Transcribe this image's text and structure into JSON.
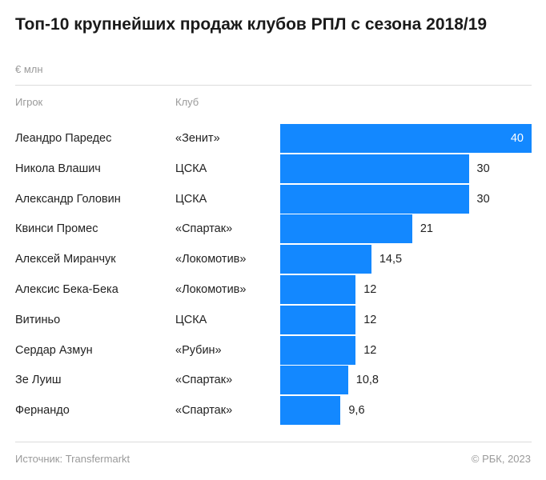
{
  "title": "Топ-10 крупнейших продаж клубов РПЛ с сезона 2018/19",
  "units": "€ млн",
  "columns": {
    "player": "Игрок",
    "club": "Клуб"
  },
  "footer": {
    "source": "Источник: Transfermarkt",
    "copyright": "© РБК, 2023"
  },
  "colors": {
    "bar": "#1388ff"
  },
  "chart_data": {
    "type": "bar",
    "orientation": "horizontal",
    "categories": [
      "Леандро Паредес",
      "Никола Влашич",
      "Александр Головин",
      "Квинси Промес",
      "Алексей Миранчук",
      "Алексис Бека-Бека",
      "Витиньо",
      "Сердар Азмун",
      "Зе Луиш",
      "Фернандо"
    ],
    "clubs": [
      "«Зенит»",
      "ЦСКА",
      "ЦСКА",
      "«Спартак»",
      "«Локомотив»",
      "«Локомотив»",
      "ЦСКА",
      "«Рубин»",
      "«Спартак»",
      "«Спартак»"
    ],
    "values": [
      40,
      30,
      30,
      21,
      14.5,
      12,
      12,
      12,
      10.8,
      9.6
    ],
    "value_labels": [
      "40",
      "30",
      "30",
      "21",
      "14,5",
      "12",
      "12",
      "12",
      "10,8",
      "9,6"
    ],
    "xlim": [
      0,
      40
    ]
  }
}
